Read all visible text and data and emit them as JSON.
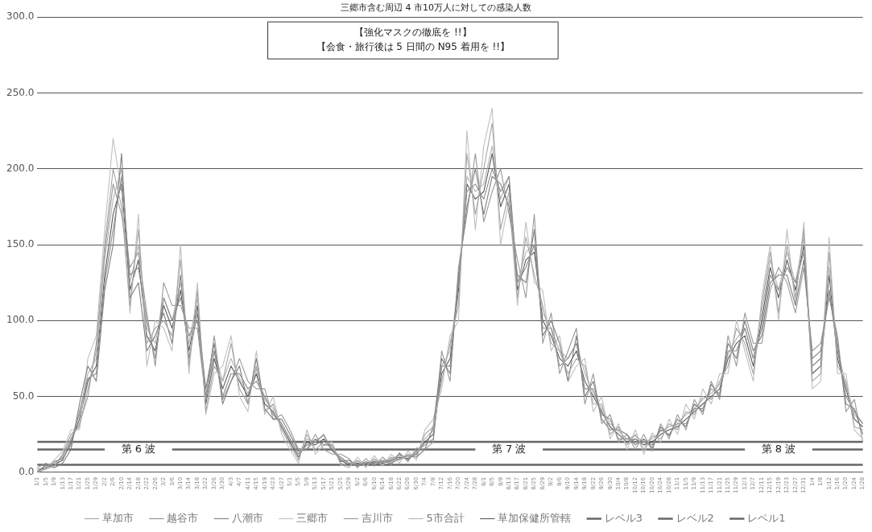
{
  "chart_data": {
    "type": "line",
    "title": "三郷市含む周辺 4 市10万人に対しての感染人数",
    "categories": [
      "1/1",
      "1/5",
      "1/9",
      "1/13",
      "1/17",
      "1/21",
      "1/25",
      "1/29",
      "2/2",
      "2/6",
      "2/10",
      "2/14",
      "2/18",
      "2/22",
      "2/26",
      "3/2",
      "3/6",
      "3/10",
      "3/14",
      "3/18",
      "3/22",
      "3/26",
      "3/30",
      "4/3",
      "4/7",
      "4/11",
      "4/15",
      "4/19",
      "4/23",
      "4/27",
      "5/1",
      "5/5",
      "5/9",
      "5/13",
      "5/17",
      "5/21",
      "5/25",
      "5/29",
      "6/2",
      "6/6",
      "6/10",
      "6/14",
      "6/18",
      "6/22",
      "6/26",
      "6/30",
      "7/4",
      "7/8",
      "7/12",
      "7/16",
      "7/20",
      "7/24",
      "7/28",
      "8/1",
      "8/5",
      "8/9",
      "8/13",
      "8/17",
      "8/21",
      "8/25",
      "8/29",
      "9/2",
      "9/6",
      "9/10",
      "9/14",
      "9/18",
      "9/22",
      "9/26",
      "9/30",
      "10/4",
      "10/8",
      "10/12",
      "10/16",
      "10/20",
      "10/24",
      "10/28",
      "11/1",
      "11/5",
      "11/9",
      "11/13",
      "11/17",
      "11/21",
      "11/25",
      "11/29",
      "12/3",
      "12/7",
      "12/11",
      "12/15",
      "12/19",
      "12/23",
      "12/27",
      "12/31",
      "1/4",
      "1/8",
      "1/12",
      "1/16",
      "1/20",
      "1/24",
      "1/28"
    ],
    "series": [
      {
        "name": "草加市",
        "color": "#a6a6a6",
        "values": [
          0,
          2,
          4,
          12,
          25,
          30,
          55,
          80,
          150,
          200,
          175,
          110,
          160,
          85,
          95,
          100,
          90,
          140,
          70,
          120,
          40,
          70,
          60,
          85,
          55,
          45,
          70,
          40,
          45,
          28,
          18,
          8,
          25,
          15,
          20,
          18,
          6,
          4,
          8,
          4,
          9,
          5,
          10,
          8,
          12,
          10,
          25,
          30,
          60,
          85,
          110,
          210,
          170,
          200,
          230,
          160,
          185,
          115,
          155,
          130,
          110,
          85,
          80,
          65,
          75,
          70,
          45,
          45,
          25,
          30,
          18,
          25,
          15,
          24,
          22,
          32,
          28,
          40,
          38,
          50,
          48,
          60,
          70,
          95,
          85,
          65,
          110,
          145,
          105,
          150,
          115,
          160,
          60,
          65,
          145,
          70,
          60,
          30,
          28
        ]
      },
      {
        "name": "越谷市",
        "color": "#8c8c8c",
        "values": [
          2,
          3,
          7,
          9,
          18,
          40,
          62,
          65,
          125,
          160,
          195,
          130,
          135,
          100,
          75,
          115,
          100,
          115,
          90,
          100,
          50,
          80,
          50,
          65,
          65,
          55,
          60,
          50,
          38,
          32,
          22,
          12,
          18,
          20,
          25,
          14,
          10,
          6,
          5,
          6,
          6,
          8,
          7,
          12,
          8,
          14,
          18,
          22,
          70,
          70,
          125,
          185,
          190,
          180,
          200,
          185,
          195,
          125,
          135,
          150,
          95,
          95,
          70,
          75,
          85,
          55,
          55,
          38,
          35,
          22,
          22,
          20,
          20,
          18,
          28,
          25,
          32,
          32,
          42,
          42,
          55,
          52,
          80,
          80,
          95,
          75,
          95,
          130,
          120,
          135,
          125,
          145,
          70,
          75,
          120,
          80,
          50,
          40,
          32
        ]
      },
      {
        "name": "八潮市",
        "color": "#7f7f7f",
        "values": [
          0,
          5,
          3,
          6,
          15,
          45,
          70,
          60,
          120,
          150,
          210,
          115,
          125,
          80,
          90,
          105,
          85,
          130,
          75,
          105,
          55,
          85,
          45,
          60,
          70,
          45,
          75,
          42,
          35,
          35,
          25,
          14,
          15,
          22,
          18,
          18,
          7,
          8,
          4,
          7,
          5,
          7,
          6,
          9,
          11,
          10,
          15,
          30,
          75,
          65,
          130,
          175,
          200,
          170,
          195,
          190,
          175,
          130,
          125,
          160,
          90,
          100,
          85,
          60,
          90,
          50,
          60,
          35,
          28,
          28,
          25,
          18,
          22,
          16,
          30,
          24,
          35,
          30,
          45,
          40,
          58,
          50,
          85,
          75,
          100,
          80,
          90,
          125,
          130,
          130,
          110,
          140,
          75,
          80,
          120,
          85,
          45,
          42,
          25
        ]
      },
      {
        "name": "三郷市",
        "color": "#bfbfbf",
        "values": [
          1,
          2,
          8,
          14,
          28,
          28,
          75,
          90,
          160,
          220,
          185,
          105,
          170,
          70,
          100,
          95,
          80,
          150,
          65,
          125,
          38,
          65,
          70,
          90,
          50,
          40,
          80,
          38,
          50,
          25,
          15,
          6,
          28,
          12,
          18,
          20,
          5,
          3,
          10,
          3,
          11,
          4,
          12,
          6,
          14,
          8,
          28,
          35,
          55,
          90,
          100,
          225,
          160,
          215,
          240,
          150,
          180,
          110,
          165,
          125,
          120,
          80,
          90,
          60,
          70,
          75,
          40,
          50,
          22,
          32,
          15,
          28,
          12,
          26,
          20,
          35,
          25,
          45,
          35,
          55,
          45,
          65,
          65,
          100,
          80,
          60,
          115,
          150,
          100,
          160,
          110,
          165,
          55,
          60,
          155,
          65,
          65,
          28,
          22
        ]
      },
      {
        "name": "吉川市",
        "color": "#999999",
        "values": [
          3,
          6,
          4,
          11,
          22,
          32,
          50,
          85,
          145,
          190,
          170,
          135,
          145,
          105,
          70,
          125,
          110,
          110,
          95,
          95,
          48,
          90,
          48,
          60,
          75,
          60,
          55,
          55,
          35,
          38,
          28,
          15,
          15,
          25,
          15,
          12,
          12,
          9,
          3,
          9,
          4,
          10,
          5,
          13,
          7,
          16,
          15,
          20,
          80,
          60,
          135,
          170,
          210,
          165,
          185,
          200,
          170,
          140,
          115,
          170,
          85,
          105,
          65,
          80,
          95,
          45,
          65,
          32,
          38,
          20,
          25,
          15,
          25,
          14,
          32,
          22,
          38,
          28,
          48,
          38,
          60,
          48,
          90,
          70,
          105,
          85,
          85,
          120,
          135,
          125,
          105,
          135,
          80,
          85,
          115,
          90,
          40,
          48,
          20
        ]
      },
      {
        "name": "5市合計",
        "color": "#b3b3b3",
        "values": [
          1,
          4,
          6,
          10,
          22,
          38,
          65,
          75,
          140,
          180,
          200,
          125,
          150,
          95,
          85,
          115,
          100,
          125,
          85,
          115,
          50,
          80,
          60,
          75,
          62,
          52,
          68,
          48,
          42,
          32,
          22,
          12,
          22,
          20,
          24,
          16,
          9,
          6,
          7,
          6,
          8,
          7,
          9,
          11,
          10,
          13,
          22,
          28,
          70,
          80,
          125,
          195,
          185,
          190,
          215,
          180,
          195,
          125,
          145,
          150,
          105,
          95,
          80,
          75,
          85,
          65,
          52,
          42,
          32,
          27,
          22,
          24,
          20,
          22,
          27,
          30,
          32,
          38,
          42,
          48,
          52,
          58,
          78,
          88,
          95,
          75,
          105,
          140,
          120,
          145,
          125,
          155,
          70,
          75,
          135,
          80,
          58,
          38,
          32
        ]
      },
      {
        "name": "草加保健所管轄",
        "color": "#595959",
        "values": [
          1,
          3,
          5,
          8,
          20,
          35,
          60,
          70,
          130,
          170,
          190,
          120,
          140,
          90,
          80,
          110,
          95,
          120,
          80,
          110,
          45,
          75,
          55,
          70,
          60,
          50,
          65,
          45,
          40,
          30,
          20,
          10,
          20,
          18,
          22,
          15,
          8,
          5,
          6,
          5,
          7,
          6,
          8,
          10,
          9,
          12,
          20,
          25,
          65,
          75,
          120,
          190,
          180,
          185,
          210,
          175,
          190,
          120,
          140,
          145,
          100,
          90,
          75,
          70,
          80,
          60,
          50,
          40,
          30,
          25,
          20,
          22,
          18,
          20,
          25,
          28,
          30,
          35,
          40,
          45,
          50,
          55,
          75,
          85,
          90,
          70,
          100,
          135,
          115,
          140,
          120,
          150,
          65,
          70,
          130,
          75,
          55,
          35,
          30
        ]
      },
      {
        "name": "レベル3",
        "color": "#666666",
        "values": [
          20,
          20,
          20,
          20,
          20,
          20,
          20,
          20,
          20,
          20,
          20,
          20,
          20,
          20,
          20,
          20,
          20,
          20,
          20,
          20,
          20,
          20,
          20,
          20,
          20,
          20,
          20,
          20,
          20,
          20,
          20,
          20,
          20,
          20,
          20,
          20,
          20,
          20,
          20,
          20,
          20,
          20,
          20,
          20,
          20,
          20,
          20,
          20,
          20,
          20,
          20,
          20,
          20,
          20,
          20,
          20,
          20,
          20,
          20,
          20,
          20,
          20,
          20,
          20,
          20,
          20,
          20,
          20,
          20,
          20,
          20,
          20,
          20,
          20,
          20,
          20,
          20,
          20,
          20,
          20,
          20,
          20,
          20,
          20,
          20,
          20,
          20,
          20,
          20,
          20,
          20,
          20,
          20,
          20,
          20,
          20,
          20,
          20,
          20
        ]
      },
      {
        "name": "レベル2",
        "color": "#666666",
        "values": [
          15,
          15,
          15,
          15,
          15,
          15,
          15,
          15,
          15,
          null,
          null,
          null,
          null,
          null,
          null,
          null,
          15,
          15,
          15,
          15,
          15,
          15,
          15,
          15,
          15,
          15,
          15,
          15,
          15,
          15,
          15,
          15,
          15,
          15,
          15,
          15,
          15,
          15,
          15,
          15,
          15,
          15,
          15,
          15,
          15,
          15,
          15,
          15,
          15,
          15,
          15,
          15,
          15,
          null,
          null,
          null,
          null,
          null,
          null,
          null,
          15,
          15,
          15,
          15,
          15,
          15,
          15,
          15,
          15,
          15,
          15,
          15,
          15,
          15,
          15,
          15,
          15,
          15,
          15,
          15,
          15,
          15,
          15,
          15,
          15,
          null,
          null,
          null,
          null,
          null,
          null,
          null,
          15,
          15,
          15,
          15,
          15,
          15,
          15
        ]
      },
      {
        "name": "レベル1",
        "color": "#666666",
        "values": [
          5,
          5,
          5,
          5,
          5,
          5,
          5,
          5,
          5,
          5,
          5,
          5,
          5,
          5,
          5,
          5,
          5,
          5,
          5,
          5,
          5,
          5,
          5,
          5,
          5,
          5,
          5,
          5,
          5,
          5,
          5,
          5,
          5,
          5,
          5,
          5,
          5,
          5,
          5,
          5,
          5,
          5,
          5,
          5,
          5,
          5,
          5,
          5,
          5,
          5,
          5,
          5,
          5,
          5,
          5,
          5,
          5,
          5,
          5,
          5,
          5,
          5,
          5,
          5,
          5,
          5,
          5,
          5,
          5,
          5,
          5,
          5,
          5,
          5,
          5,
          5,
          5,
          5,
          5,
          5,
          5,
          5,
          5,
          5,
          5,
          5,
          5,
          5,
          5,
          5,
          5,
          5,
          5,
          5,
          5,
          5,
          5,
          5,
          5
        ]
      }
    ],
    "ylim": [
      0,
      300
    ],
    "yticks": [
      {
        "value": 0,
        "label": "0.0"
      },
      {
        "value": 50,
        "label": "50.0"
      },
      {
        "value": 100,
        "label": "100.0"
      },
      {
        "value": 150,
        "label": "150.0"
      },
      {
        "value": 200,
        "label": "200.0"
      },
      {
        "value": 250,
        "label": "250.0"
      },
      {
        "value": 300,
        "label": "300.0"
      }
    ],
    "grid": "y",
    "legend": "bottom",
    "marker": "none",
    "line_style": "solid",
    "annotations": [
      "【強化マスクの徹底を !!】",
      "【会食・旅行後は 5 日間の N95 着用を !!】",
      "第 6 波",
      "第 7 波",
      "第 8 波"
    ]
  }
}
